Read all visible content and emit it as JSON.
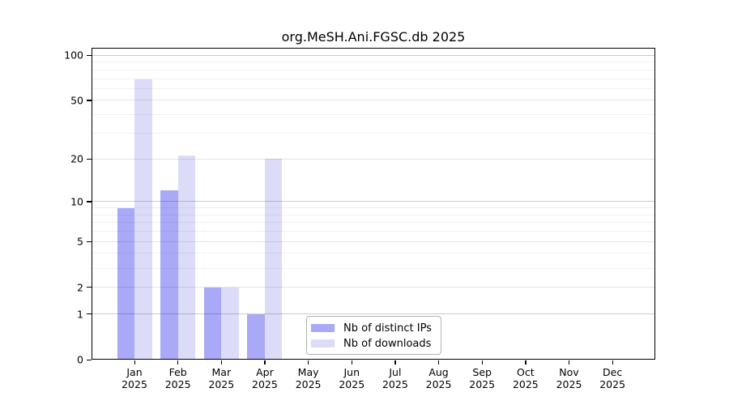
{
  "title": "org.MeSH.Ani.FGSC.db 2025",
  "chart_data": {
    "type": "bar",
    "title": "org.MeSH.Ani.FGSC.db 2025",
    "categories": [
      "Jan",
      "Feb",
      "Mar",
      "Apr",
      "May",
      "Jun",
      "Jul",
      "Aug",
      "Sep",
      "Oct",
      "Nov",
      "Dec"
    ],
    "category_year": "2025",
    "series": [
      {
        "name": "Nb of distinct IPs",
        "slug": "distinct-ips",
        "color": "#a9a9f7",
        "values": [
          9,
          12,
          2,
          1,
          0,
          0,
          0,
          0,
          0,
          0,
          0,
          0
        ]
      },
      {
        "name": "Nb of downloads",
        "slug": "downloads",
        "color": "#dcdcf9",
        "values": [
          69,
          21,
          2,
          20,
          0,
          0,
          0,
          0,
          0,
          0,
          0,
          0
        ]
      }
    ],
    "yscale": "log1p",
    "ylim": [
      0,
      112
    ],
    "yticks": [
      0,
      1,
      2,
      5,
      10,
      20,
      50,
      100
    ],
    "yticks_minor": [
      3,
      4,
      6,
      7,
      8,
      9,
      30,
      40,
      60,
      70,
      80,
      90
    ],
    "grid": "horizontal",
    "legend_position": "inside-bottom-center",
    "frame_color": "#000000",
    "background_color": "#ffffff"
  },
  "legend": {
    "items": [
      {
        "label": "Nb of distinct IPs"
      },
      {
        "label": "Nb of downloads"
      }
    ]
  }
}
